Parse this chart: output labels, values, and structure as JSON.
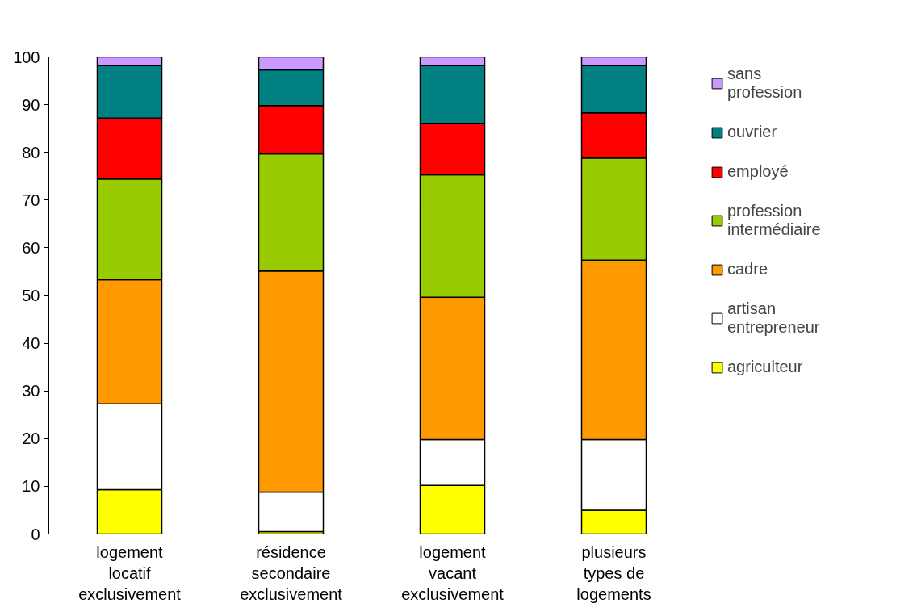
{
  "chart_data": {
    "type": "bar",
    "stacked": true,
    "categories": [
      "logement locatif exclusivement",
      "résidence secondaire exclusivement",
      "logement vacant exclusivement",
      "plusieurs types de logements"
    ],
    "series": [
      {
        "name": "agriculteur",
        "color": "#ffff00",
        "values": [
          9.3,
          0.5,
          10.2,
          5.0
        ]
      },
      {
        "name": "artisan entrepreneur",
        "color": "#ffffff",
        "values": [
          18.0,
          8.3,
          9.6,
          14.8
        ]
      },
      {
        "name": "cadre",
        "color": "#ff9900",
        "values": [
          26.0,
          46.3,
          29.8,
          37.6
        ]
      },
      {
        "name": "profession intermédiaire",
        "color": "#99cc00",
        "values": [
          21.1,
          24.6,
          25.7,
          21.4
        ]
      },
      {
        "name": "employé",
        "color": "#ff0000",
        "values": [
          12.8,
          10.1,
          10.8,
          9.5
        ]
      },
      {
        "name": "ouvrier",
        "color": "#008080",
        "values": [
          11.0,
          7.5,
          12.1,
          9.9
        ]
      },
      {
        "name": "sans profession",
        "color": "#cc99ff",
        "values": [
          1.8,
          2.7,
          1.8,
          1.8
        ]
      }
    ],
    "ylim": [
      0,
      100
    ],
    "yticks": [
      0,
      10,
      20,
      30,
      40,
      50,
      60,
      70,
      80,
      90,
      100
    ],
    "grid": false,
    "legend": "right"
  }
}
